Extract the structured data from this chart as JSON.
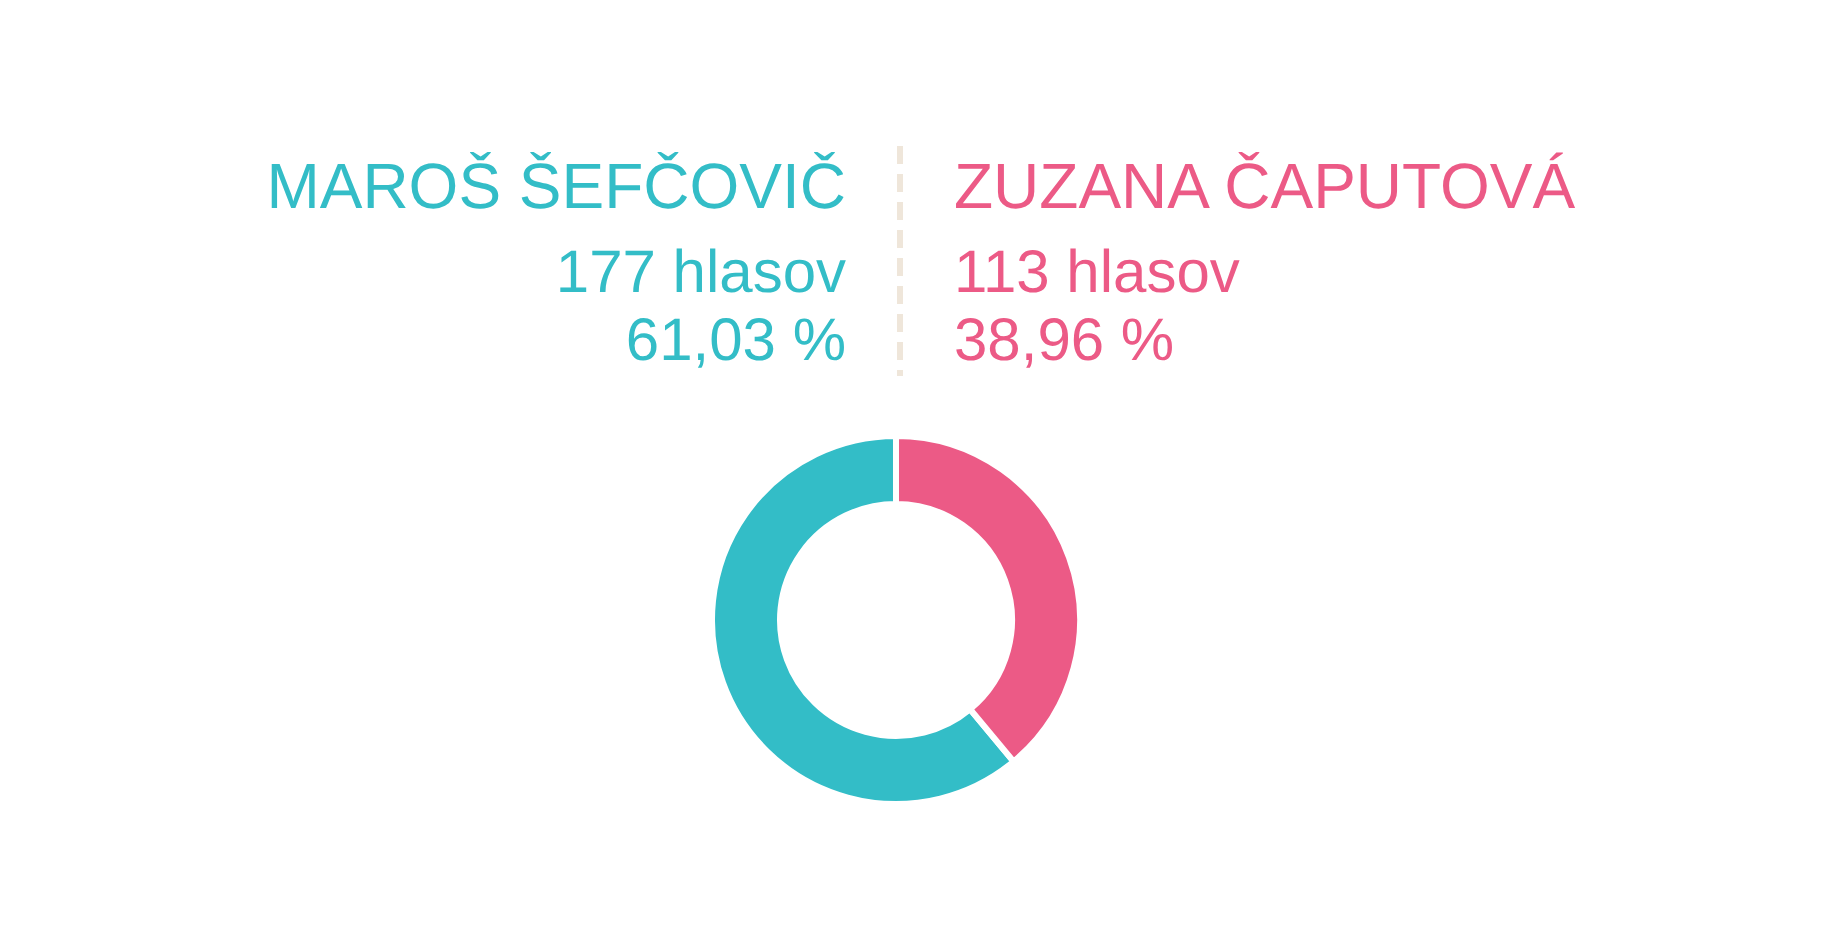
{
  "chart_data": {
    "type": "donut",
    "categories": [
      "MAROŠ ŠEFČOVIČ",
      "ZUZANA ČAPUTOVÁ"
    ],
    "values": [
      177,
      113
    ],
    "colors": [
      "#33bdc7",
      "#ec5a86"
    ],
    "value_labels": [
      "177 hlasov\n61,03 %",
      "113 hlasov\n38,96 %"
    ]
  }
}
